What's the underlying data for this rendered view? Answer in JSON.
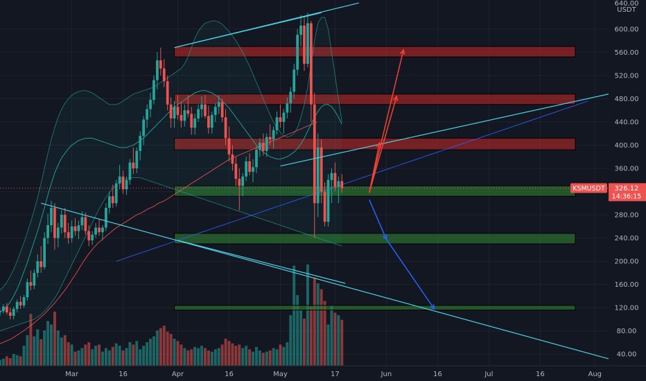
{
  "chart_data": {
    "type": "candlestick",
    "symbol": "KSMUSDT",
    "currency": "USDT",
    "last_price": "326.12",
    "countdown": "14:36:15",
    "y_axis": {
      "ticks": [
        40,
        80,
        120,
        160,
        200,
        240,
        280,
        320,
        360,
        400,
        440,
        480,
        520,
        560,
        600
      ],
      "tick_labels": [
        "40.00",
        "80.00",
        "120.00",
        "160.00",
        "200.00",
        "240.00",
        "280.00",
        "320.00",
        "360.00",
        "400.00",
        "440.00",
        "480.00",
        "520.00",
        "560.00",
        "600.00"
      ],
      "top_label": "640.00",
      "range": [
        20,
        650
      ]
    },
    "x_axis": {
      "labels": [
        "Mar",
        "16",
        "Apr",
        "16",
        "May",
        "17",
        "Jun",
        "16",
        "Jul",
        "16",
        "Aug"
      ],
      "dates": [
        "2021-03-01",
        "2021-03-16",
        "2021-04-01",
        "2021-04-16",
        "2021-05-01",
        "2021-05-17",
        "2021-06-01",
        "2021-06-16",
        "2021-07-01",
        "2021-07-16",
        "2021-08-01"
      ],
      "range": [
        "2021-02-08",
        "2021-08-05"
      ]
    },
    "candles": {
      "start": "2021-02-08",
      "values": [
        [
          112,
          118,
          106,
          114
        ],
        [
          114,
          126,
          110,
          122
        ],
        [
          122,
          128,
          108,
          112
        ],
        [
          112,
          120,
          100,
          106
        ],
        [
          106,
          122,
          100,
          118
        ],
        [
          118,
          134,
          112,
          130
        ],
        [
          130,
          140,
          118,
          124
        ],
        [
          124,
          142,
          120,
          138
        ],
        [
          138,
          170,
          132,
          164
        ],
        [
          164,
          184,
          150,
          158
        ],
        [
          158,
          186,
          152,
          180
        ],
        [
          180,
          212,
          172,
          200
        ],
        [
          200,
          226,
          180,
          190
        ],
        [
          190,
          250,
          186,
          240
        ],
        [
          240,
          282,
          230,
          262
        ],
        [
          262,
          304,
          250,
          292
        ],
        [
          292,
          300,
          220,
          240
        ],
        [
          240,
          266,
          224,
          258
        ],
        [
          258,
          288,
          248,
          280
        ],
        [
          280,
          292,
          240,
          250
        ],
        [
          250,
          266,
          230,
          240
        ],
        [
          240,
          270,
          232,
          260
        ],
        [
          260,
          274,
          244,
          252
        ],
        [
          252,
          270,
          238,
          262
        ],
        [
          262,
          286,
          254,
          276
        ],
        [
          276,
          284,
          246,
          252
        ],
        [
          252,
          262,
          226,
          236
        ],
        [
          236,
          252,
          228,
          246
        ],
        [
          246,
          266,
          240,
          258
        ],
        [
          258,
          272,
          244,
          250
        ],
        [
          250,
          262,
          236,
          258
        ],
        [
          258,
          300,
          252,
          292
        ],
        [
          292,
          320,
          282,
          312
        ],
        [
          312,
          332,
          292,
          300
        ],
        [
          300,
          340,
          294,
          334
        ],
        [
          334,
          366,
          324,
          346
        ],
        [
          346,
          356,
          316,
          324
        ],
        [
          324,
          346,
          314,
          340
        ],
        [
          340,
          376,
          332,
          370
        ],
        [
          370,
          396,
          350,
          360
        ],
        [
          360,
          396,
          352,
          390
        ],
        [
          390,
          424,
          374,
          416
        ],
        [
          416,
          450,
          400,
          444
        ],
        [
          444,
          470,
          430,
          462
        ],
        [
          462,
          490,
          448,
          478
        ],
        [
          478,
          520,
          470,
          512
        ],
        [
          512,
          560,
          496,
          546
        ],
        [
          546,
          568,
          520,
          532
        ],
        [
          532,
          548,
          500,
          510
        ],
        [
          510,
          520,
          460,
          470
        ],
        [
          470,
          482,
          430,
          446
        ],
        [
          446,
          476,
          430,
          466
        ],
        [
          466,
          486,
          444,
          452
        ],
        [
          452,
          474,
          430,
          442
        ],
        [
          442,
          470,
          432,
          460
        ],
        [
          460,
          486,
          448,
          454
        ],
        [
          454,
          466,
          418,
          430
        ],
        [
          430,
          454,
          418,
          446
        ],
        [
          446,
          470,
          440,
          462
        ],
        [
          462,
          484,
          448,
          470
        ],
        [
          470,
          486,
          446,
          450
        ],
        [
          450,
          468,
          420,
          430
        ],
        [
          430,
          458,
          420,
          452
        ],
        [
          452,
          472,
          440,
          466
        ],
        [
          466,
          486,
          454,
          474
        ],
        [
          474,
          480,
          440,
          448
        ],
        [
          448,
          462,
          400,
          412
        ],
        [
          412,
          432,
          372,
          384
        ],
        [
          384,
          400,
          356,
          368
        ],
        [
          368,
          380,
          330,
          342
        ],
        [
          342,
          360,
          288,
          330
        ],
        [
          330,
          352,
          312,
          346
        ],
        [
          346,
          380,
          338,
          372
        ],
        [
          372,
          386,
          348,
          354
        ],
        [
          354,
          376,
          336,
          362
        ],
        [
          362,
          398,
          352,
          392
        ],
        [
          392,
          412,
          380,
          404
        ],
        [
          404,
          420,
          382,
          390
        ],
        [
          390,
          420,
          380,
          414
        ],
        [
          414,
          436,
          400,
          410
        ],
        [
          410,
          432,
          394,
          426
        ],
        [
          426,
          458,
          418,
          448
        ],
        [
          448,
          470,
          430,
          440
        ],
        [
          440,
          462,
          420,
          456
        ],
        [
          456,
          482,
          446,
          472
        ],
        [
          472,
          500,
          456,
          492
        ],
        [
          492,
          540,
          480,
          530
        ],
        [
          530,
          600,
          520,
          590
        ],
        [
          590,
          624,
          570,
          606
        ],
        [
          606,
          620,
          528,
          540
        ],
        [
          540,
          628,
          534,
          610
        ],
        [
          610,
          614,
          440,
          470
        ],
        [
          470,
          490,
          240,
          300
        ],
        [
          300,
          420,
          276,
          396
        ],
        [
          396,
          410,
          300,
          320
        ],
        [
          320,
          336,
          260,
          268
        ],
        [
          268,
          350,
          260,
          340
        ],
        [
          340,
          360,
          300,
          352
        ],
        [
          352,
          370,
          320,
          328
        ],
        [
          328,
          346,
          300,
          338
        ],
        [
          338,
          350,
          318,
          326
        ]
      ]
    },
    "volume": {
      "values": [
        10,
        12,
        16,
        13,
        20,
        18,
        16,
        34,
        52,
        88,
        50,
        62,
        45,
        60,
        76,
        70,
        92,
        60,
        48,
        52,
        40,
        36,
        24,
        26,
        30,
        36,
        40,
        28,
        34,
        36,
        24,
        30,
        26,
        32,
        38,
        34,
        26,
        30,
        40,
        36,
        42,
        28,
        34,
        40,
        46,
        50,
        60,
        64,
        68,
        58,
        54,
        46,
        42,
        36,
        30,
        26,
        28,
        32,
        30,
        34,
        30,
        26,
        24,
        28,
        30,
        36,
        46,
        42,
        38,
        34,
        36,
        30,
        34,
        28,
        24,
        32,
        26,
        22,
        24,
        26,
        30,
        28,
        36,
        32,
        40,
        86,
        170,
        120,
        95,
        80,
        172,
        100,
        150,
        140,
        130,
        110,
        70,
        102,
        90,
        86,
        78
      ],
      "range": [
        0,
        200
      ]
    },
    "ma_red": {
      "x_start": 0,
      "values": [
        58,
        62,
        66,
        72,
        78,
        85,
        92,
        100,
        108,
        118,
        128,
        140,
        152,
        166,
        180,
        196,
        210,
        222,
        232,
        240,
        248,
        256,
        262,
        268,
        274,
        280,
        284,
        290,
        294,
        300,
        304,
        310,
        316,
        322,
        328,
        334,
        340,
        346,
        352,
        358,
        364,
        370,
        376,
        380,
        384,
        388,
        392,
        396,
        400,
        404,
        408,
        412,
        416,
        420,
        424,
        428,
        432,
        436,
        440
      ]
    },
    "ma_green": {
      "x_start": 0,
      "values": [
        100,
        104,
        110,
        118,
        128,
        140,
        156,
        172,
        188,
        204,
        222,
        240,
        260,
        282,
        304,
        326,
        346,
        360,
        368,
        372,
        380,
        388,
        396,
        404,
        410,
        414,
        418,
        420,
        420,
        416,
        412,
        408,
        404,
        396,
        388,
        384,
        380,
        384,
        392,
        400,
        408,
        416,
        426,
        436,
        444,
        450,
        456,
        462,
        468,
        470,
        468,
        462,
        452,
        444,
        440,
        436,
        432,
        430,
        428
      ]
    },
    "ma_blue": {
      "x_start": 34,
      "values": [
        200,
        204,
        208,
        212,
        216,
        220,
        224,
        228,
        232,
        236,
        240,
        244,
        248,
        252,
        256,
        260,
        264,
        268,
        272,
        276,
        280,
        284,
        288,
        292,
        296,
        300,
        304,
        308,
        312,
        316,
        320,
        324,
        328,
        332,
        336,
        340,
        344,
        348,
        352,
        356,
        360,
        364,
        368,
        372,
        376,
        380,
        384,
        388,
        392,
        396,
        400,
        404,
        408,
        412,
        416,
        420,
        424,
        428,
        432,
        436,
        440,
        444,
        448,
        452,
        456,
        460,
        464,
        468,
        472,
        476
      ]
    },
    "bands": {
      "upper": [
        150,
        156,
        164,
        174,
        186,
        200,
        216,
        232,
        250,
        268,
        288,
        310,
        334,
        360,
        386,
        410,
        430,
        448,
        462,
        472,
        480,
        486,
        490,
        492,
        494,
        494,
        492,
        490,
        486,
        482,
        478,
        474,
        470,
        470,
        470,
        472,
        476,
        480,
        484,
        488,
        490,
        492,
        494,
        496,
        498,
        500,
        504,
        508,
        512,
        516,
        520,
        524,
        528,
        532,
        540,
        552,
        568,
        584,
        596,
        604,
        610,
        612,
        614,
        614,
        612,
        608,
        602,
        596,
        588,
        580,
        570,
        560,
        548,
        536,
        522,
        508,
        494,
        480,
        466,
        452,
        440,
        430,
        422,
        416,
        414,
        416,
        420,
        430,
        448,
        470,
        500,
        540,
        580,
        610,
        620,
        620,
        600,
        560,
        520,
        480,
        440
      ],
      "lower": [
        80,
        82,
        84,
        86,
        88,
        90,
        92,
        94,
        96,
        98,
        100,
        104,
        108,
        114,
        120,
        128,
        136,
        146,
        158,
        170,
        182,
        194,
        206,
        218,
        230,
        242,
        254,
        266,
        278,
        290,
        300,
        310,
        318,
        326,
        332,
        336,
        340,
        342,
        344,
        344,
        344,
        344,
        342,
        340,
        338,
        336,
        334,
        332,
        330,
        328,
        326,
        324,
        322,
        320,
        318,
        316,
        314,
        312,
        310,
        308,
        306,
        304,
        302,
        300,
        298,
        296,
        294,
        292,
        290,
        288,
        286,
        284,
        282,
        280,
        278,
        276,
        274,
        272,
        270,
        268,
        266,
        264,
        262,
        260,
        258,
        256,
        254,
        252,
        250,
        248,
        246,
        244,
        242,
        240,
        238,
        236,
        234,
        232,
        230,
        228,
        226
      ],
      "basis": [
        112,
        116,
        122,
        130,
        140,
        152,
        166,
        182,
        198,
        216,
        234,
        252,
        272,
        292,
        314,
        334,
        352,
        366,
        378,
        386,
        394,
        400,
        404,
        408,
        410,
        412,
        412,
        412,
        410,
        408,
        406,
        404,
        402,
        400,
        398,
        396,
        396,
        396,
        398,
        400,
        404,
        408,
        412,
        418,
        424,
        430,
        436,
        442,
        448,
        454,
        460,
        466,
        470,
        474,
        478,
        482,
        486,
        490,
        492,
        494,
        494,
        492,
        490,
        486,
        482,
        476,
        470,
        464,
        456,
        448,
        440,
        432,
        424,
        416,
        408,
        400,
        394,
        388,
        384,
        380,
        378,
        376,
        376,
        378,
        380,
        384,
        388,
        394,
        402,
        412,
        424,
        436,
        448,
        458,
        466,
        470,
        470,
        466,
        458,
        448,
        436
      ]
    },
    "resistance_zones": [
      [
        552,
        570
      ],
      [
        470,
        488
      ],
      [
        392,
        412
      ]
    ],
    "support_zones": [
      [
        312,
        330
      ],
      [
        230,
        248
      ],
      [
        116,
        124
      ]
    ],
    "trendlines": [
      {
        "from": [
          "2021-03-31",
          568
        ],
        "to": [
          "2021-05-24",
          645
        ]
      },
      {
        "from": [
          "2021-03-31",
          568
        ],
        "to": [
          "2021-05-13",
          628
        ]
      },
      {
        "from": [
          "2021-05-01",
          364
        ],
        "to": [
          "2021-08-05",
          488
        ]
      },
      {
        "from": [
          "2021-02-20",
          300
        ],
        "to": [
          "2021-08-05",
          32
        ]
      },
      {
        "from": [
          "2021-04-01",
          236
        ],
        "to": [
          "2021-05-20",
          162
        ]
      }
    ],
    "projected_up": [
      [
        "2021-05-27",
        318
      ],
      [
        "2021-05-30",
        404
      ],
      [
        "2021-05-27",
        318
      ],
      [
        "2021-06-04",
        484
      ],
      [
        "2021-05-27",
        318
      ],
      [
        "2021-06-06",
        564
      ]
    ],
    "projected_down": [
      [
        "2021-05-27",
        306
      ],
      [
        "2021-06-01",
        238
      ],
      [
        "2021-06-15",
        118
      ]
    ],
    "colors": {
      "background": "#131722",
      "grid": "#1e222d",
      "up": "#26a69a",
      "down": "#ef5350",
      "resistance": "#c62828",
      "support": "#2e7d32",
      "trendline": "#4dd0e1",
      "projection_up": "#f44336",
      "projection_down": "#2962ff",
      "price_tag": "#ef5350"
    }
  }
}
